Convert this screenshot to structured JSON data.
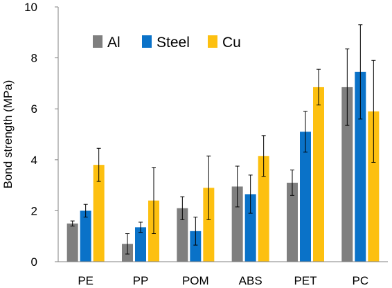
{
  "chart_data": {
    "type": "bar",
    "title": "",
    "xlabel": "",
    "ylabel": "Bond strength (MPa)",
    "ylim": [
      0,
      10
    ],
    "yticks": [
      "0",
      "2",
      "4",
      "6",
      "8",
      "10"
    ],
    "grid": false,
    "legend_position": "top-left",
    "categories": [
      "PE",
      "PP",
      "POM",
      "ABS",
      "PET",
      "PC"
    ],
    "series": [
      {
        "name": "Al",
        "color": "#7f7f7f",
        "values": [
          1.5,
          0.7,
          2.1,
          2.95,
          3.1,
          6.85
        ],
        "errors": [
          0.1,
          0.4,
          0.45,
          0.8,
          0.5,
          1.5
        ]
      },
      {
        "name": "Steel",
        "color": "#0a72c8",
        "values": [
          2.0,
          1.35,
          1.2,
          2.65,
          5.1,
          7.45
        ],
        "errors": [
          0.25,
          0.2,
          0.55,
          0.75,
          0.8,
          1.85
        ]
      },
      {
        "name": "Cu",
        "color": "#fdc010",
        "values": [
          3.8,
          2.4,
          2.9,
          4.15,
          6.85,
          5.9
        ],
        "errors": [
          0.65,
          1.3,
          1.25,
          0.8,
          0.7,
          2.0
        ]
      }
    ]
  }
}
